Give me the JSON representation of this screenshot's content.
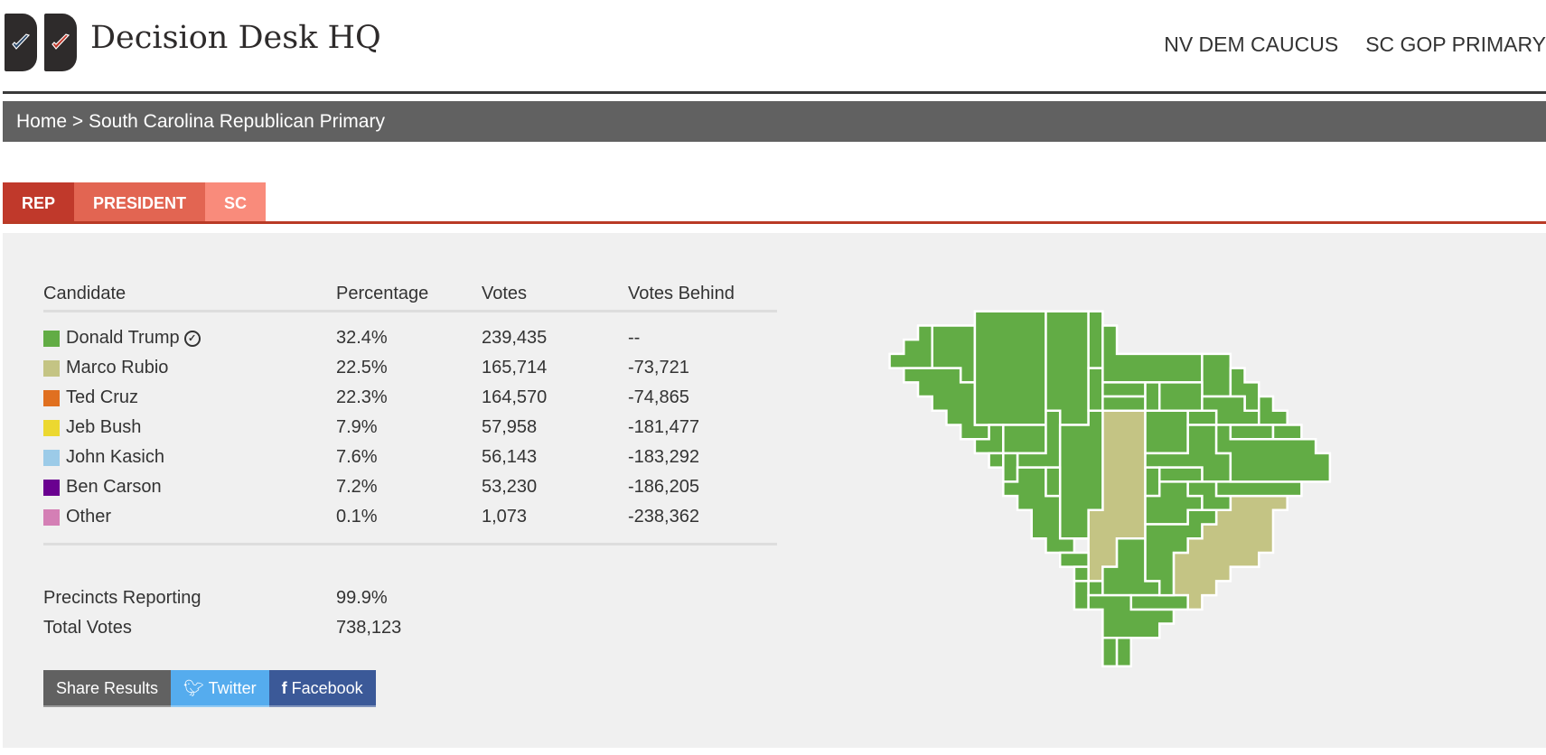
{
  "header": {
    "title": "Decision Desk HQ",
    "nav": [
      "NV DEM CAUCUS",
      "SC GOP PRIMARY"
    ]
  },
  "breadcrumb": "Home > South Carolina Republican Primary",
  "tabs": [
    {
      "label": "REP",
      "color": "#c0392b"
    },
    {
      "label": "PRESIDENT",
      "color": "#e26552"
    },
    {
      "label": "SC",
      "color": "#f98b7b"
    }
  ],
  "table": {
    "headers": [
      "Candidate",
      "Percentage",
      "Votes",
      "Votes Behind"
    ],
    "rows": [
      {
        "name": "Donald Trump",
        "pct": "32.4%",
        "votes": "239,435",
        "behind": "--",
        "color": "#62ac45",
        "winner": true
      },
      {
        "name": "Marco Rubio",
        "pct": "22.5%",
        "votes": "165,714",
        "behind": "-73,721",
        "color": "#c4c484"
      },
      {
        "name": "Ted Cruz",
        "pct": "22.3%",
        "votes": "164,570",
        "behind": "-74,865",
        "color": "#e07020"
      },
      {
        "name": "Jeb Bush",
        "pct": "7.9%",
        "votes": "57,958",
        "behind": "-181,477",
        "color": "#ecd830"
      },
      {
        "name": "John Kasich",
        "pct": "7.6%",
        "votes": "56,143",
        "behind": "-183,292",
        "color": "#9ccbe8"
      },
      {
        "name": "Ben Carson",
        "pct": "7.2%",
        "votes": "53,230",
        "behind": "-186,205",
        "color": "#6a0090"
      },
      {
        "name": "Other",
        "pct": "0.1%",
        "votes": "1,073",
        "behind": "-238,362",
        "color": "#d47fb5"
      }
    ]
  },
  "summary": {
    "precincts_label": "Precincts Reporting",
    "precincts": "99.9%",
    "total_label": "Total Votes",
    "total": "738,123"
  },
  "share": {
    "label": "Share Results",
    "twitter": "Twitter",
    "facebook": "Facebook"
  },
  "map": {
    "colors": {
      "Trump": "#62ac45",
      "Rubio": "#c4c484"
    }
  }
}
